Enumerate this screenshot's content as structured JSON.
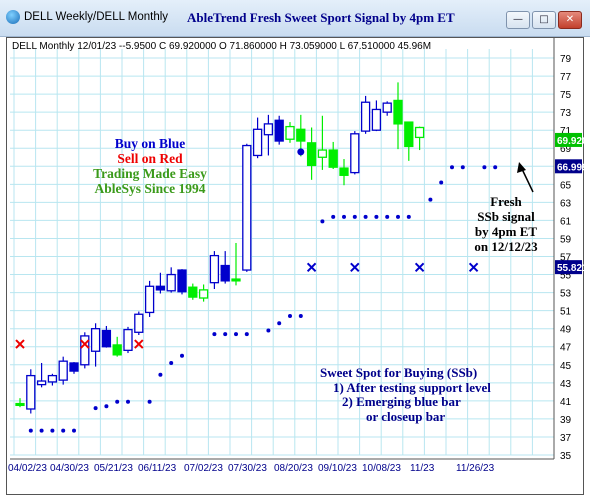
{
  "window": {
    "title": "DELL Weekly/DELL Monthly",
    "app_title": "AbleTrend Fresh Sweet Sport Signal by 4pm ET",
    "minimize_symbol": "—",
    "maximize_symbol": "□",
    "close_symbol": "✕"
  },
  "colors": {
    "blue_bar": "#0000cc",
    "green_bar": "#00ee00",
    "red_x": "#ee0000",
    "signal_blue": "#0000cc",
    "grid": "#b8e6f0",
    "price_tag_green": "#00c000",
    "price_tag_blue": "#00008b"
  },
  "chart_data": {
    "type": "candlestick",
    "title": "DELL Monthly 12/01/23 --5.9500 C 69.920000 O 71.860000 H 73.059000 L 67.510000 45.96M",
    "ylim": [
      35,
      80
    ],
    "y_ticks": [
      35,
      37,
      39,
      41,
      43,
      45,
      47,
      49,
      51,
      53,
      55,
      57,
      59,
      61,
      63,
      65,
      67,
      69,
      71,
      73,
      75,
      77,
      79
    ],
    "x_tick_labels": [
      "04/02/23",
      "04/30/23",
      "05/21/23",
      "06/11/23",
      "07/02/23",
      "07/30/23",
      "08/20/23",
      "09/10/23",
      "10/08/23",
      "11/23",
      "11/26/23"
    ],
    "price_tags": [
      {
        "value": 69.92,
        "label": "69.9200",
        "color": "green"
      },
      {
        "value": 66.9994,
        "label": "66.9994",
        "color": "blue"
      },
      {
        "value": 55.8215,
        "label": "55.8215",
        "color": "blue"
      }
    ],
    "bars": [
      {
        "o": 40.5,
        "h": 41.3,
        "l": 40.3,
        "c": 40.7,
        "color": "green",
        "filled": true
      },
      {
        "o": 40.1,
        "h": 44.5,
        "l": 39.6,
        "c": 43.8,
        "color": "blue",
        "filled": false
      },
      {
        "o": 42.8,
        "h": 45.2,
        "l": 42.5,
        "c": 43.2,
        "color": "blue",
        "filled": false
      },
      {
        "o": 43.1,
        "h": 44.0,
        "l": 42.7,
        "c": 43.8,
        "color": "blue",
        "filled": false
      },
      {
        "o": 43.3,
        "h": 45.9,
        "l": 42.8,
        "c": 45.4,
        "color": "blue",
        "filled": false
      },
      {
        "o": 44.3,
        "h": 45.3,
        "l": 44.0,
        "c": 45.2,
        "color": "blue",
        "filled": true
      },
      {
        "o": 45.0,
        "h": 48.6,
        "l": 44.6,
        "c": 48.2,
        "color": "blue",
        "filled": false
      },
      {
        "o": 46.5,
        "h": 49.6,
        "l": 44.8,
        "c": 49.0,
        "color": "blue",
        "filled": false
      },
      {
        "o": 47.0,
        "h": 49.3,
        "l": 46.9,
        "c": 48.8,
        "color": "blue",
        "filled": true
      },
      {
        "o": 47.2,
        "h": 48.1,
        "l": 45.9,
        "c": 46.1,
        "color": "green",
        "filled": true
      },
      {
        "o": 46.6,
        "h": 49.2,
        "l": 46.3,
        "c": 48.9,
        "color": "blue",
        "filled": false
      },
      {
        "o": 48.6,
        "h": 50.9,
        "l": 48.3,
        "c": 50.6,
        "color": "blue",
        "filled": false
      },
      {
        "o": 50.8,
        "h": 54.3,
        "l": 50.3,
        "c": 53.7,
        "color": "blue",
        "filled": false
      },
      {
        "o": 53.3,
        "h": 55.2,
        "l": 52.9,
        "c": 53.7,
        "color": "blue",
        "filled": true
      },
      {
        "o": 53.2,
        "h": 55.8,
        "l": 53.0,
        "c": 55.0,
        "color": "blue",
        "filled": false
      },
      {
        "o": 53.1,
        "h": 55.6,
        "l": 52.8,
        "c": 55.5,
        "color": "blue",
        "filled": true
      },
      {
        "o": 53.6,
        "h": 54.0,
        "l": 52.2,
        "c": 52.5,
        "color": "green",
        "filled": true
      },
      {
        "o": 52.4,
        "h": 53.9,
        "l": 52.0,
        "c": 53.3,
        "color": "green",
        "filled": false
      },
      {
        "o": 54.1,
        "h": 57.6,
        "l": 53.4,
        "c": 57.1,
        "color": "blue",
        "filled": false
      },
      {
        "o": 54.3,
        "h": 57.6,
        "l": 54.0,
        "c": 56.0,
        "color": "blue",
        "filled": true
      },
      {
        "o": 54.3,
        "h": 58.5,
        "l": 53.8,
        "c": 54.5,
        "color": "green",
        "filled": true
      },
      {
        "o": 55.5,
        "h": 69.5,
        "l": 55.3,
        "c": 69.3,
        "color": "blue",
        "filled": false
      },
      {
        "o": 68.2,
        "h": 72.4,
        "l": 67.9,
        "c": 71.1,
        "color": "blue",
        "filled": false
      },
      {
        "o": 70.5,
        "h": 72.7,
        "l": 68.2,
        "c": 71.7,
        "color": "blue",
        "filled": false
      },
      {
        "o": 69.8,
        "h": 72.6,
        "l": 69.4,
        "c": 72.1,
        "color": "blue",
        "filled": true
      },
      {
        "o": 71.4,
        "h": 71.9,
        "l": 69.6,
        "c": 70.0,
        "color": "green",
        "filled": false
      },
      {
        "o": 71.1,
        "h": 72.7,
        "l": 68.1,
        "c": 69.8,
        "color": "green",
        "filled": true
      },
      {
        "o": 69.6,
        "h": 71.3,
        "l": 65.5,
        "c": 67.1,
        "color": "green",
        "filled": true
      },
      {
        "o": 68.0,
        "h": 72.6,
        "l": 66.6,
        "c": 68.8,
        "color": "green",
        "filled": false
      },
      {
        "o": 68.8,
        "h": 69.7,
        "l": 66.7,
        "c": 66.9,
        "color": "green",
        "filled": true
      },
      {
        "o": 66.8,
        "h": 67.8,
        "l": 64.9,
        "c": 66.0,
        "color": "green",
        "filled": true
      },
      {
        "o": 66.3,
        "h": 70.9,
        "l": 66.1,
        "c": 70.6,
        "color": "blue",
        "filled": false
      },
      {
        "o": 70.9,
        "h": 74.8,
        "l": 70.6,
        "c": 74.1,
        "color": "blue",
        "filled": false
      },
      {
        "o": 71.0,
        "h": 74.3,
        "l": 70.9,
        "c": 73.3,
        "color": "blue",
        "filled": false
      },
      {
        "o": 73.0,
        "h": 74.2,
        "l": 72.6,
        "c": 74.0,
        "color": "blue",
        "filled": false
      },
      {
        "o": 74.3,
        "h": 76.3,
        "l": 68.9,
        "c": 71.7,
        "color": "green",
        "filled": true
      },
      {
        "o": 71.9,
        "h": 71.9,
        "l": 67.6,
        "c": 69.2,
        "color": "green",
        "filled": true
      },
      {
        "o": 71.3,
        "h": 71.4,
        "l": 68.8,
        "c": 70.2,
        "color": "green",
        "filled": false
      }
    ],
    "support_dots": [
      [
        1,
        37.7
      ],
      [
        2,
        37.7
      ],
      [
        3,
        37.7
      ],
      [
        4,
        37.7
      ],
      [
        5,
        37.7
      ],
      [
        7,
        40.2
      ],
      [
        8,
        40.4
      ],
      [
        9,
        40.9
      ],
      [
        10,
        40.9
      ],
      [
        12,
        40.9
      ],
      [
        13,
        43.9
      ],
      [
        14,
        45.2
      ],
      [
        15,
        46.0
      ],
      [
        18,
        48.4
      ],
      [
        19,
        48.4
      ],
      [
        20,
        48.4
      ],
      [
        21,
        48.4
      ],
      [
        23,
        48.8
      ],
      [
        24,
        49.6
      ],
      [
        25,
        50.4
      ],
      [
        26,
        50.4
      ],
      [
        28,
        60.9
      ],
      [
        29,
        61.4
      ],
      [
        30,
        61.4
      ],
      [
        31,
        61.4
      ],
      [
        32,
        61.4
      ],
      [
        33,
        61.4
      ],
      [
        34,
        61.4
      ],
      [
        35,
        61.4
      ],
      [
        36,
        61.4
      ],
      [
        38,
        63.3
      ],
      [
        39,
        65.2
      ],
      [
        40,
        66.9
      ],
      [
        41,
        66.9
      ],
      [
        43,
        66.9
      ],
      [
        44,
        66.9
      ]
    ],
    "sell_x": [
      {
        "i": 0,
        "v": 47.3
      },
      {
        "i": 6,
        "v": 47.3
      },
      {
        "i": 11,
        "v": 47.3
      }
    ],
    "blue_x": [
      {
        "i": 27,
        "v": 55.8
      },
      {
        "i": 31,
        "v": 55.8
      },
      {
        "i": 37,
        "v": 55.8
      },
      {
        "i": 42,
        "v": 55.8
      }
    ],
    "signal_dot": {
      "i": 26,
      "v": 68.6
    }
  },
  "annotations": {
    "legend": {
      "buy": "Buy on Blue",
      "sell": "Sell on Red",
      "trading": "Trading Made Easy",
      "since": "AbleSys Since 1994"
    },
    "fresh": [
      "Fresh",
      "SSb signal",
      "by 4pm ET",
      "on 12/12/23"
    ],
    "sweet_spot": {
      "title": "Sweet Spot for Buying (SSb)",
      "line1": "1) After testing support level",
      "line2": "2) Emerging blue bar",
      "line3": "or closeup bar"
    }
  }
}
